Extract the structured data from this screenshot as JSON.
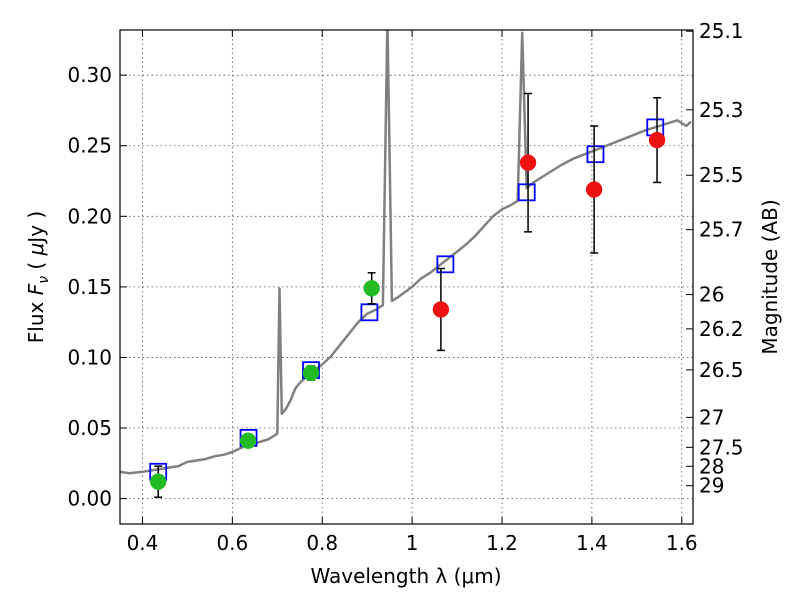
{
  "chart_data": {
    "type": "scatter",
    "xlabel": "Wavelength  λ (μm)",
    "ylabel": "Flux  F_ν ( μJy )",
    "ylabel_parts": {
      "pre": "Flux  ",
      "symbol": "F",
      "sub": "ν",
      "mid": "  ( ",
      "unit_symbol": "μ",
      "post": "Jy )"
    },
    "y2label": "Magnitude (AB)",
    "xlim": [
      0.35,
      1.625
    ],
    "ylim": [
      -0.018,
      0.332
    ],
    "xticks": [
      0.4,
      0.6,
      0.8,
      1.0,
      1.2,
      1.4,
      1.6
    ],
    "xtick_labels": [
      "0.4",
      "0.6",
      "0.8",
      "1",
      "1.2",
      "1.4",
      "1.6"
    ],
    "yticks": [
      0.0,
      0.05,
      0.1,
      0.15,
      0.2,
      0.25,
      0.3
    ],
    "ytick_labels": [
      "0.00",
      "0.05",
      "0.10",
      "0.15",
      "0.20",
      "0.25",
      "0.30"
    ],
    "mag_ticks": [
      25.1,
      25.3,
      25.5,
      25.7,
      26,
      26.2,
      26.5,
      27,
      27.5,
      28,
      29
    ],
    "mag_tick_labels": [
      "25.1",
      "25.3",
      "25.5",
      "25.7",
      "26",
      "26.2",
      "26.5",
      "27",
      "27.5",
      "28",
      "29"
    ],
    "grid": true,
    "colors": {
      "spectrum": "#808080",
      "model": "#0000ff",
      "green": "#22bb22",
      "red": "#ee1111",
      "errorbar": "#000000"
    },
    "spectrum": [
      [
        0.35,
        0.019
      ],
      [
        0.37,
        0.018
      ],
      [
        0.4,
        0.019
      ],
      [
        0.42,
        0.02
      ],
      [
        0.44,
        0.021
      ],
      [
        0.46,
        0.022
      ],
      [
        0.48,
        0.023
      ],
      [
        0.5,
        0.026
      ],
      [
        0.52,
        0.027
      ],
      [
        0.54,
        0.028
      ],
      [
        0.56,
        0.03
      ],
      [
        0.58,
        0.031
      ],
      [
        0.6,
        0.033
      ],
      [
        0.62,
        0.036
      ],
      [
        0.64,
        0.039
      ],
      [
        0.66,
        0.04
      ],
      [
        0.68,
        0.042
      ],
      [
        0.7,
        0.046
      ],
      [
        0.705,
        0.149
      ],
      [
        0.71,
        0.06
      ],
      [
        0.72,
        0.064
      ],
      [
        0.73,
        0.07
      ],
      [
        0.74,
        0.078
      ],
      [
        0.75,
        0.082
      ],
      [
        0.76,
        0.085
      ],
      [
        0.78,
        0.09
      ],
      [
        0.8,
        0.095
      ],
      [
        0.82,
        0.101
      ],
      [
        0.84,
        0.109
      ],
      [
        0.86,
        0.117
      ],
      [
        0.88,
        0.125
      ],
      [
        0.9,
        0.131
      ],
      [
        0.92,
        0.134
      ],
      [
        0.935,
        0.137
      ],
      [
        0.945,
        0.34
      ],
      [
        0.955,
        0.14
      ],
      [
        0.97,
        0.143
      ],
      [
        1.0,
        0.15
      ],
      [
        1.02,
        0.156
      ],
      [
        1.04,
        0.16
      ],
      [
        1.06,
        0.165
      ],
      [
        1.08,
        0.17
      ],
      [
        1.1,
        0.175
      ],
      [
        1.12,
        0.18
      ],
      [
        1.14,
        0.186
      ],
      [
        1.16,
        0.193
      ],
      [
        1.18,
        0.2
      ],
      [
        1.2,
        0.205
      ],
      [
        1.22,
        0.208
      ],
      [
        1.235,
        0.211
      ],
      [
        1.245,
        0.33
      ],
      [
        1.255,
        0.22
      ],
      [
        1.27,
        0.224
      ],
      [
        1.3,
        0.23
      ],
      [
        1.33,
        0.236
      ],
      [
        1.36,
        0.241
      ],
      [
        1.4,
        0.246
      ],
      [
        1.44,
        0.251
      ],
      [
        1.48,
        0.256
      ],
      [
        1.52,
        0.261
      ],
      [
        1.56,
        0.265
      ],
      [
        1.59,
        0.268
      ],
      [
        1.61,
        0.264
      ],
      [
        1.62,
        0.267
      ]
    ],
    "model_points": [
      {
        "x": 0.435,
        "y": 0.019
      },
      {
        "x": 0.636,
        "y": 0.043
      },
      {
        "x": 0.775,
        "y": 0.091
      },
      {
        "x": 0.905,
        "y": 0.132
      },
      {
        "x": 1.074,
        "y": 0.166
      },
      {
        "x": 1.255,
        "y": 0.217
      },
      {
        "x": 1.408,
        "y": 0.244
      },
      {
        "x": 1.541,
        "y": 0.263
      }
    ],
    "green_points": [
      {
        "x": 0.435,
        "y": 0.012,
        "err": 0.011
      },
      {
        "x": 0.635,
        "y": 0.041,
        "err": 0.004
      },
      {
        "x": 0.775,
        "y": 0.089,
        "err": 0.005
      },
      {
        "x": 0.91,
        "y": 0.149,
        "err": 0.011
      }
    ],
    "red_points": [
      {
        "x": 1.064,
        "y": 0.134,
        "err": 0.029
      },
      {
        "x": 1.258,
        "y": 0.238,
        "err": 0.049
      },
      {
        "x": 1.405,
        "y": 0.219,
        "err": 0.045
      },
      {
        "x": 1.545,
        "y": 0.254,
        "err": 0.03
      }
    ]
  }
}
